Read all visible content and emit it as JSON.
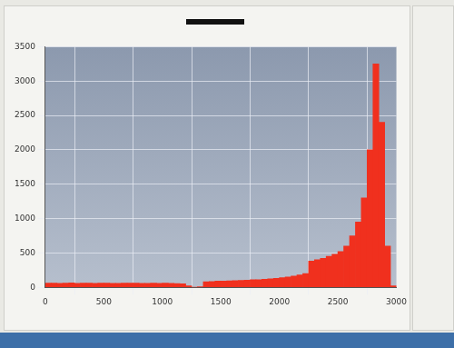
{
  "chart_data": {
    "type": "histogram",
    "bins": [
      0,
      50,
      100,
      150,
      200,
      250,
      300,
      350,
      400,
      450,
      500,
      550,
      600,
      650,
      700,
      750,
      800,
      850,
      900,
      950,
      1000,
      1050,
      1100,
      1150,
      1200,
      1250,
      1300,
      1350,
      1400,
      1450,
      1500,
      1550,
      1600,
      1650,
      1700,
      1750,
      1800,
      1850,
      1900,
      1950,
      2000,
      2050,
      2100,
      2150,
      2200,
      2250,
      2300,
      2350,
      2400,
      2450,
      2500,
      2550,
      2600,
      2650,
      2700,
      2750,
      2800,
      2850,
      2900,
      2950,
      3000
    ],
    "values": [
      60,
      62,
      58,
      61,
      63,
      59,
      60,
      62,
      57,
      60,
      61,
      59,
      58,
      60,
      62,
      61,
      59,
      57,
      60,
      58,
      61,
      59,
      56,
      50,
      20,
      0,
      5,
      80,
      85,
      90,
      92,
      95,
      98,
      100,
      105,
      110,
      112,
      118,
      125,
      130,
      140,
      150,
      165,
      180,
      200,
      380,
      400,
      420,
      450,
      480,
      520,
      600,
      750,
      950,
      1300,
      2000,
      3250,
      2400,
      600,
      20
    ],
    "color": "#f0301e",
    "xlim": [
      0,
      3000
    ],
    "xticks": [
      0,
      500,
      1000,
      1500,
      2000,
      2500,
      3000
    ],
    "ylim": [
      0,
      3500
    ],
    "yticks": [
      0,
      500,
      1000,
      1500,
      2000,
      2500,
      3000,
      3500
    ],
    "grid": true
  }
}
